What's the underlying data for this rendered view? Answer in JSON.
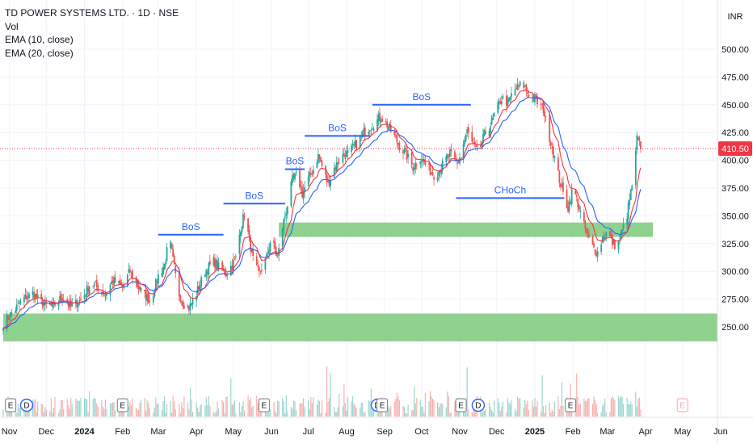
{
  "header": {
    "title": "TD POWER SYSTEMS LTD. · 1D · NSE",
    "indicators": [
      "Vol",
      "EMA (10, close)",
      "EMA (20, close)"
    ],
    "currency": "INR"
  },
  "chart_data": {
    "type": "candlestick",
    "symbol": "TD POWER SYSTEMS LTD.",
    "interval": "1D",
    "exchange": "NSE",
    "y_axis": {
      "ticks": [
        250,
        275,
        300,
        325,
        350,
        375,
        400,
        425,
        450,
        475,
        500
      ],
      "tick_labels": [
        "250.00",
        "275.00",
        "300.00",
        "325.00",
        "350.00",
        "375.00",
        "400.00",
        "425.00",
        "450.00",
        "475.00",
        "500.00"
      ],
      "range": [
        232,
        532
      ]
    },
    "x_axis": {
      "tick_labels": [
        "Nov",
        "Dec",
        "2024",
        "Feb",
        "Mar",
        "Apr",
        "May",
        "Jun",
        "Jul",
        "Aug",
        "Sep",
        "Oct",
        "Nov",
        "Dec",
        "2025",
        "Feb",
        "Mar",
        "Apr",
        "May",
        "Jun"
      ],
      "tick_dates": [
        "2023-11-01",
        "2023-12-01",
        "2024-01-01",
        "2024-02-01",
        "2024-03-01",
        "2024-04-01",
        "2024-05-01",
        "2024-06-01",
        "2024-07-01",
        "2024-08-01",
        "2024-09-01",
        "2024-10-01",
        "2024-11-01",
        "2024-12-01",
        "2025-01-01",
        "2025-02-01",
        "2025-03-01",
        "2025-04-01",
        "2025-05-01",
        "2025-06-01"
      ],
      "range": [
        "2023-10-27",
        "2025-06-26"
      ]
    },
    "last_price": 410.5,
    "last_price_label": "410.50",
    "price_path": [
      [
        "2023-10-27",
        253
      ],
      [
        "2023-11-05",
        265
      ],
      [
        "2023-11-12",
        275
      ],
      [
        "2023-11-20",
        280
      ],
      [
        "2023-11-28",
        271
      ],
      [
        "2023-12-06",
        268
      ],
      [
        "2023-12-14",
        277
      ],
      [
        "2023-12-21",
        268
      ],
      [
        "2023-12-30",
        275
      ],
      [
        "2024-01-06",
        290
      ],
      [
        "2024-01-12",
        285
      ],
      [
        "2024-01-18",
        279
      ],
      [
        "2024-01-24",
        292
      ],
      [
        "2024-02-01",
        286
      ],
      [
        "2024-02-07",
        300
      ],
      [
        "2024-02-12",
        289
      ],
      [
        "2024-02-17",
        281
      ],
      [
        "2024-02-24",
        273
      ],
      [
        "2024-03-01",
        296
      ],
      [
        "2024-03-06",
        306
      ],
      [
        "2024-03-10",
        330
      ],
      [
        "2024-03-13",
        310
      ],
      [
        "2024-03-17",
        282
      ],
      [
        "2024-03-21",
        272
      ],
      [
        "2024-03-26",
        267
      ],
      [
        "2024-04-01",
        280
      ],
      [
        "2024-04-08",
        300
      ],
      [
        "2024-04-15",
        309
      ],
      [
        "2024-04-22",
        300
      ],
      [
        "2024-04-26",
        298
      ],
      [
        "2024-05-03",
        312
      ],
      [
        "2024-05-07",
        340
      ],
      [
        "2024-05-10",
        352
      ],
      [
        "2024-05-14",
        328
      ],
      [
        "2024-05-18",
        305
      ],
      [
        "2024-05-22",
        298
      ],
      [
        "2024-05-28",
        312
      ],
      [
        "2024-06-01",
        332
      ],
      [
        "2024-06-03",
        322
      ],
      [
        "2024-06-06",
        312
      ],
      [
        "2024-06-10",
        340
      ],
      [
        "2024-06-14",
        360
      ],
      [
        "2024-06-18",
        382
      ],
      [
        "2024-06-22",
        387
      ],
      [
        "2024-06-26",
        370
      ],
      [
        "2024-07-01",
        383
      ],
      [
        "2024-07-05",
        392
      ],
      [
        "2024-07-09",
        404
      ],
      [
        "2024-07-13",
        392
      ],
      [
        "2024-07-17",
        378
      ],
      [
        "2024-07-22",
        393
      ],
      [
        "2024-07-28",
        403
      ],
      [
        "2024-08-03",
        407
      ],
      [
        "2024-08-09",
        415
      ],
      [
        "2024-08-15",
        425
      ],
      [
        "2024-08-22",
        432
      ],
      [
        "2024-08-29",
        439
      ],
      [
        "2024-09-03",
        432
      ],
      [
        "2024-09-08",
        423
      ],
      [
        "2024-09-13",
        413
      ],
      [
        "2024-09-18",
        406
      ],
      [
        "2024-09-24",
        394
      ],
      [
        "2024-09-30",
        403
      ],
      [
        "2024-10-06",
        393
      ],
      [
        "2024-10-12",
        386
      ],
      [
        "2024-10-18",
        396
      ],
      [
        "2024-10-24",
        406
      ],
      [
        "2024-10-30",
        396
      ],
      [
        "2024-11-03",
        411
      ],
      [
        "2024-11-07",
        426
      ],
      [
        "2024-11-12",
        413
      ],
      [
        "2024-11-16",
        406
      ],
      [
        "2024-11-21",
        423
      ],
      [
        "2024-11-26",
        432
      ],
      [
        "2024-11-30",
        443
      ],
      [
        "2024-12-05",
        456
      ],
      [
        "2024-12-10",
        451
      ],
      [
        "2024-12-14",
        461
      ],
      [
        "2024-12-18",
        466
      ],
      [
        "2024-12-22",
        469
      ],
      [
        "2024-12-26",
        461
      ],
      [
        "2024-12-30",
        456
      ],
      [
        "2025-01-04",
        451
      ],
      [
        "2025-01-08",
        446
      ],
      [
        "2025-01-12",
        426
      ],
      [
        "2025-01-16",
        407
      ],
      [
        "2025-01-20",
        387
      ],
      [
        "2025-01-24",
        370
      ],
      [
        "2025-01-28",
        357
      ],
      [
        "2025-02-01",
        376
      ],
      [
        "2025-02-05",
        361
      ],
      [
        "2025-02-09",
        344
      ],
      [
        "2025-02-13",
        331
      ],
      [
        "2025-02-17",
        322
      ],
      [
        "2025-02-21",
        317
      ],
      [
        "2025-02-25",
        330
      ],
      [
        "2025-03-01",
        336
      ],
      [
        "2025-03-05",
        326
      ],
      [
        "2025-03-09",
        322
      ],
      [
        "2025-03-13",
        336
      ],
      [
        "2025-03-17",
        351
      ],
      [
        "2025-03-20",
        371
      ],
      [
        "2025-03-23",
        391
      ],
      [
        "2025-03-25",
        420
      ],
      [
        "2025-03-27",
        414
      ],
      [
        "2025-03-28",
        410.5
      ]
    ],
    "annotations": [
      {
        "type": "level",
        "label": "BoS",
        "x1": "2024-03-01",
        "x2": "2024-04-23",
        "y": 333
      },
      {
        "type": "level",
        "label": "BoS",
        "x1": "2024-04-23",
        "x2": "2024-06-12",
        "y": 361
      },
      {
        "type": "level",
        "label": "BoS",
        "x1": "2024-06-12",
        "x2": "2024-06-28",
        "y": 392
      },
      {
        "type": "level",
        "label": "BoS",
        "x1": "2024-06-28",
        "x2": "2024-08-20",
        "y": 422
      },
      {
        "type": "level",
        "label": "BoS",
        "x1": "2024-08-22",
        "x2": "2024-11-10",
        "y": 450
      },
      {
        "type": "level",
        "label": "CHoCh",
        "x1": "2024-10-29",
        "x2": "2025-01-25",
        "y": 366
      }
    ],
    "zones": [
      {
        "x1": "2024-06-07",
        "x2": "2025-04-07",
        "y1": 331,
        "y2": 344,
        "color": "#8fd18f"
      },
      {
        "x1": "2023-10-27",
        "x2": "2025-06-26",
        "y1": 237,
        "y2": 262,
        "color": "#8fd18f"
      }
    ],
    "events": [
      {
        "date": "2023-11-02",
        "label": "E",
        "kind": "earnings"
      },
      {
        "date": "2023-11-15",
        "label": "D",
        "kind": "dividend"
      },
      {
        "date": "2024-02-01",
        "label": "E",
        "kind": "earnings"
      },
      {
        "date": "2024-05-26",
        "label": "E",
        "kind": "earnings"
      },
      {
        "date": "2024-08-26",
        "label": "D",
        "kind": "dividend"
      },
      {
        "date": "2024-08-30",
        "label": "E",
        "kind": "earnings"
      },
      {
        "date": "2024-11-02",
        "label": "E",
        "kind": "earnings"
      },
      {
        "date": "2024-11-16",
        "label": "D",
        "kind": "dividend"
      },
      {
        "date": "2025-01-30",
        "label": "E",
        "kind": "earnings"
      },
      {
        "date": "2025-05-01",
        "label": "E",
        "kind": "upcoming-earnings"
      }
    ],
    "colors": {
      "up": "#26a69a",
      "down": "#ef5350",
      "ema10": "#f23645",
      "ema20": "#2962ff",
      "annotation": "#2962ff",
      "zone": "#8fd18f",
      "last_price": "#f23645",
      "grid": "#f0f3fa",
      "axis_text": "#131722"
    },
    "grid": true
  }
}
